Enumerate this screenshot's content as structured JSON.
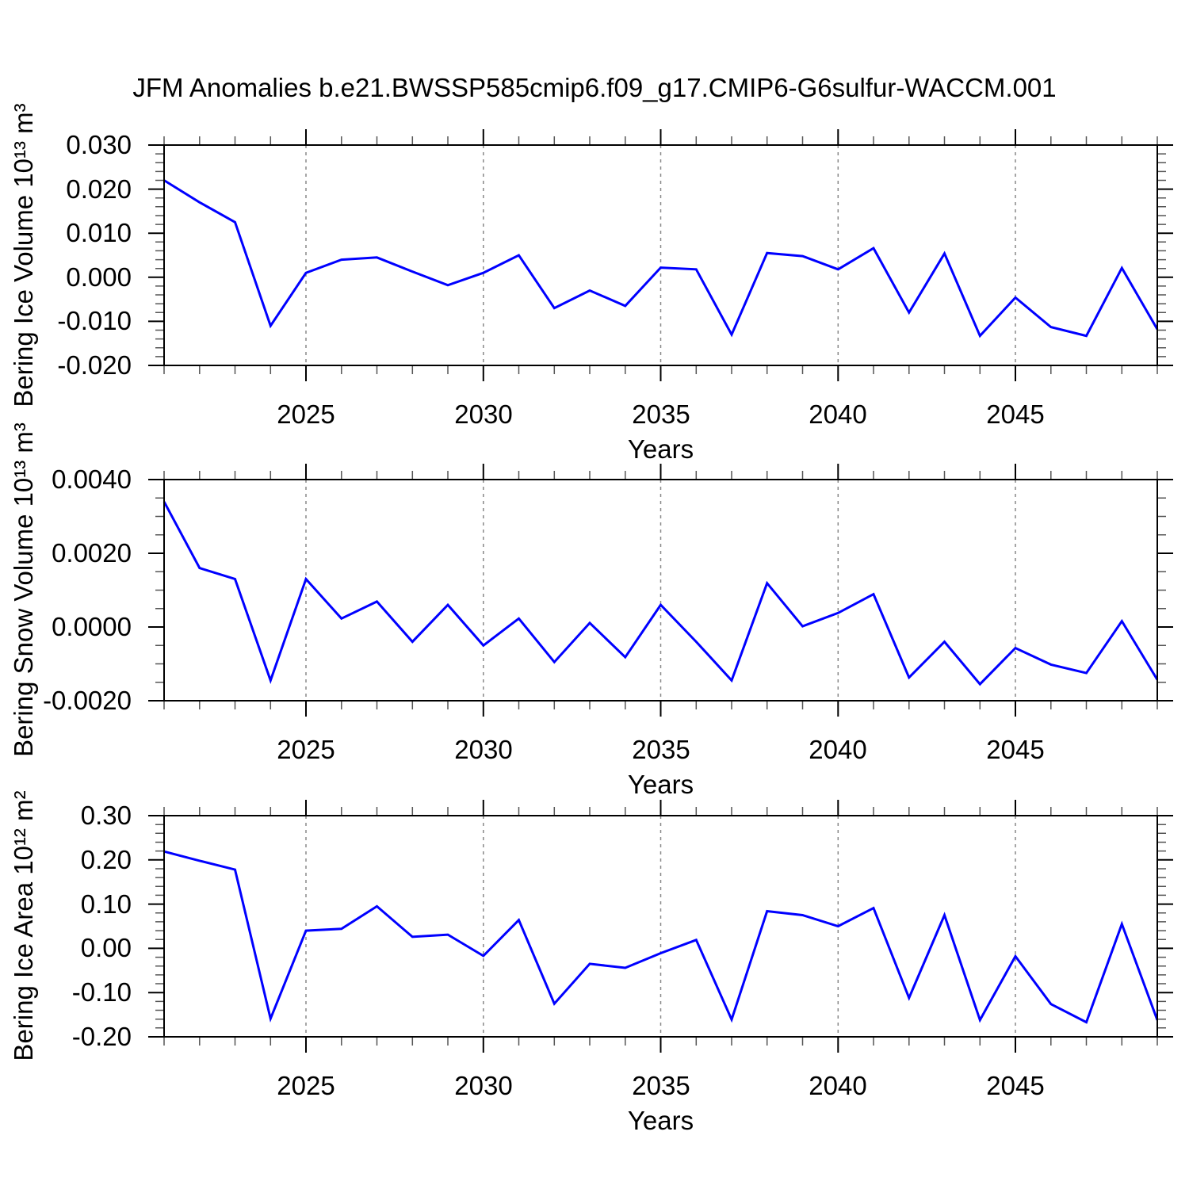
{
  "title": "JFM Anomalies b.e21.BWSSP585cmip6.f09_g17.CMIP6-G6sulfur-WACCM.001",
  "colors": {
    "line": "#0000ff",
    "axis": "#000000",
    "minor_tick": "#555555",
    "gridline": "#888888",
    "background": "#ffffff",
    "text": "#000000"
  },
  "x_axis": {
    "label": "Years",
    "range": [
      2021,
      2049
    ],
    "minor_step": 1,
    "major_ticks": [
      2025,
      2030,
      2035,
      2040,
      2045
    ],
    "major_tick_labels": [
      "2025",
      "2030",
      "2035",
      "2040",
      "2045"
    ],
    "gridlines": "vertical-dashed-at-major-ticks"
  },
  "chart_data": [
    {
      "type": "line",
      "ylabel": "Bering Ice Volume 10¹³ m³",
      "xlabel": "Years",
      "ylim": [
        -0.02,
        0.03
      ],
      "y_minor_step": 0.002,
      "y_ticks": {
        "values": [
          0.03,
          0.02,
          0.01,
          0.0,
          -0.01,
          -0.02
        ],
        "labels": [
          "0.030",
          "0.020",
          "0.010",
          "0.000",
          "-0.010",
          "-0.020"
        ]
      },
      "x": [
        2021,
        2022,
        2023,
        2024,
        2025,
        2026,
        2027,
        2028,
        2029,
        2030,
        2031,
        2032,
        2033,
        2034,
        2035,
        2036,
        2037,
        2038,
        2039,
        2040,
        2041,
        2042,
        2043,
        2044,
        2045,
        2046,
        2047,
        2048,
        2049
      ],
      "values": [
        0.022,
        0.017,
        0.0125,
        -0.011,
        0.001,
        0.004,
        0.0045,
        0.0013,
        -0.0018,
        0.001,
        0.005,
        -0.007,
        -0.003,
        -0.0065,
        0.0022,
        0.0018,
        -0.013,
        0.0055,
        0.0048,
        0.0018,
        0.0066,
        -0.008,
        0.0054,
        -0.0133,
        -0.0046,
        -0.0113,
        -0.0133,
        0.0021,
        -0.0118
      ]
    },
    {
      "type": "line",
      "ylabel": "Bering Snow Volume 10¹³ m³",
      "xlabel": "Years",
      "ylim": [
        -0.002,
        0.004
      ],
      "y_minor_step": 0.0005,
      "y_ticks": {
        "values": [
          0.004,
          0.002,
          0.0,
          -0.002
        ],
        "labels": [
          "0.0040",
          "0.0020",
          "0.0000",
          "-0.0020"
        ]
      },
      "x": [
        2021,
        2022,
        2023,
        2024,
        2025,
        2026,
        2027,
        2028,
        2029,
        2030,
        2031,
        2032,
        2033,
        2034,
        2035,
        2036,
        2037,
        2038,
        2039,
        2040,
        2041,
        2042,
        2043,
        2044,
        2045,
        2046,
        2047,
        2048,
        2049
      ],
      "values": [
        0.0034,
        0.0016,
        0.0013,
        -0.00145,
        0.0013,
        0.00023,
        0.00069,
        -0.0004,
        0.0006,
        -0.0005,
        0.00023,
        -0.00095,
        0.00011,
        -0.00082,
        0.0006,
        -0.0004,
        -0.00145,
        0.00119,
        2e-05,
        0.00038,
        0.00089,
        -0.00137,
        -0.0004,
        -0.00155,
        -0.00057,
        -0.00102,
        -0.00125,
        0.00016,
        -0.00143
      ]
    },
    {
      "type": "line",
      "ylabel": "Bering Ice Area 10¹² m²",
      "xlabel": "Years",
      "ylim": [
        -0.2,
        0.3
      ],
      "y_minor_step": 0.02,
      "y_ticks": {
        "values": [
          0.3,
          0.2,
          0.1,
          0.0,
          -0.1,
          -0.2
        ],
        "labels": [
          "0.30",
          "0.20",
          "0.10",
          "0.00",
          "-0.10",
          "-0.20"
        ]
      },
      "x": [
        2021,
        2022,
        2023,
        2024,
        2025,
        2026,
        2027,
        2028,
        2029,
        2030,
        2031,
        2032,
        2033,
        2034,
        2035,
        2036,
        2037,
        2038,
        2039,
        2040,
        2041,
        2042,
        2043,
        2044,
        2045,
        2046,
        2047,
        2048,
        2049
      ],
      "values": [
        0.219,
        0.198,
        0.178,
        -0.159,
        0.04,
        0.044,
        0.095,
        0.026,
        0.031,
        -0.017,
        0.064,
        -0.125,
        -0.035,
        -0.044,
        -0.011,
        0.019,
        -0.161,
        0.084,
        0.075,
        0.05,
        0.091,
        -0.112,
        0.075,
        -0.162,
        -0.018,
        -0.126,
        -0.167,
        0.055,
        -0.162
      ]
    }
  ]
}
